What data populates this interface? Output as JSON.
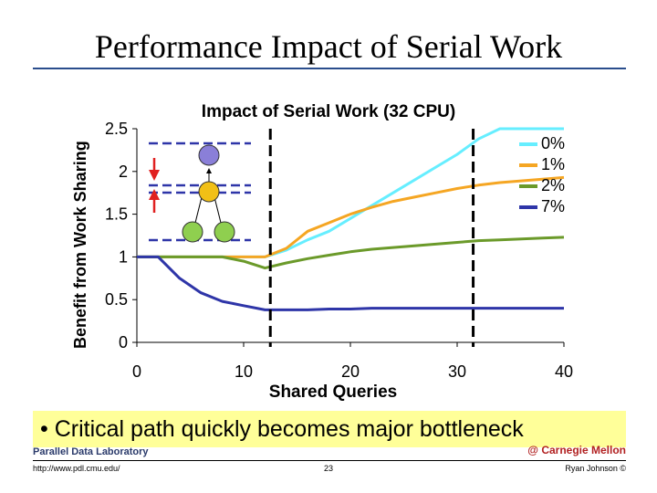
{
  "slide": {
    "title": "Performance Impact of Serial Work",
    "bullet": "• Critical path quickly becomes major bottleneck",
    "footer_lab": "Parallel Data Laboratory",
    "footer_right": "@ Carnegie Mellon",
    "footer_url": "http://www.pdl.cmu.edu/",
    "footer_page": "23",
    "footer_author": "Ryan Johnson ©"
  },
  "chart_data": {
    "type": "line",
    "title": "Impact of Serial Work (32 CPU)",
    "xlabel": "Shared Queries",
    "ylabel": "Benefit from Work Sharing",
    "xlim": [
      0,
      40
    ],
    "ylim": [
      0,
      2.5
    ],
    "xticks": [
      "0",
      "10",
      "20",
      "30",
      "40"
    ],
    "yticks": [
      "0",
      "0.5",
      "1",
      "1.5",
      "2",
      "2.5"
    ],
    "grid": false,
    "legend_position": "right",
    "markers": [
      12.5,
      31.5
    ],
    "series": [
      {
        "name": "0%",
        "color": "#66eeff",
        "x": [
          0,
          2,
          4,
          6,
          8,
          10,
          12,
          14,
          16,
          18,
          20,
          22,
          24,
          26,
          28,
          30,
          32,
          34,
          36,
          38,
          40
        ],
        "y": [
          1,
          1,
          1,
          1,
          1,
          1,
          1,
          1.08,
          1.2,
          1.3,
          1.45,
          1.6,
          1.75,
          1.9,
          2.05,
          2.2,
          2.38,
          2.5,
          2.5,
          2.5,
          2.5
        ]
      },
      {
        "name": "1%",
        "color": "#f5a623",
        "x": [
          0,
          2,
          4,
          6,
          8,
          10,
          12,
          14,
          16,
          18,
          20,
          22,
          24,
          26,
          28,
          30,
          32,
          34,
          36,
          38,
          40
        ],
        "y": [
          1,
          1,
          1,
          1,
          1,
          1,
          1,
          1.1,
          1.3,
          1.4,
          1.5,
          1.58,
          1.65,
          1.7,
          1.75,
          1.8,
          1.84,
          1.87,
          1.89,
          1.91,
          1.93
        ]
      },
      {
        "name": "2%",
        "color": "#6b9a2a",
        "x": [
          0,
          2,
          4,
          6,
          8,
          10,
          12,
          14,
          16,
          18,
          20,
          22,
          24,
          26,
          28,
          30,
          32,
          34,
          36,
          38,
          40
        ],
        "y": [
          1,
          1,
          1,
          1,
          1,
          0.95,
          0.87,
          0.93,
          0.98,
          1.02,
          1.06,
          1.09,
          1.11,
          1.13,
          1.15,
          1.17,
          1.19,
          1.2,
          1.21,
          1.22,
          1.23
        ]
      },
      {
        "name": "7%",
        "color": "#2e35a8",
        "x": [
          0,
          2,
          4,
          6,
          8,
          10,
          12,
          14,
          16,
          18,
          20,
          22,
          24,
          26,
          28,
          30,
          32,
          34,
          36,
          38,
          40
        ],
        "y": [
          1,
          1,
          0.75,
          0.58,
          0.48,
          0.43,
          0.38,
          0.38,
          0.38,
          0.39,
          0.39,
          0.4,
          0.4,
          0.4,
          0.4,
          0.4,
          0.4,
          0.4,
          0.4,
          0.4,
          0.4
        ]
      }
    ]
  }
}
